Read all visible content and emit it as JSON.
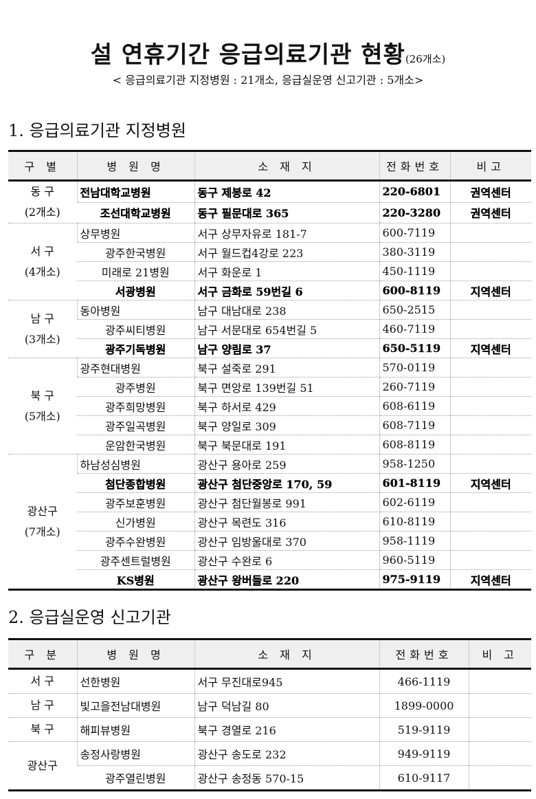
{
  "title": {
    "main": "설 연휴기간 응급의료기관 현황",
    "count": "(26개소)"
  },
  "subtitle": "< 응급의료기관 지정병원 : 21개소,  응급실운영 신고기관 :  5개소>",
  "section1": {
    "heading": "1. 응급의료기관 지정병원",
    "headers": [
      "구 별",
      "병 원 명",
      "소 재 지",
      "전화번호",
      "비고"
    ],
    "groups": [
      {
        "name": "동 구",
        "count": "(2개소)",
        "rows": [
          {
            "name": "전남대학교병원",
            "address": "동구 제봉로 42",
            "phone": "220-6801",
            "note": "권역센터"
          },
          {
            "name": "조선대학교병원",
            "address": "동구 필문대로 365",
            "phone": "220-3280",
            "note": "권역센터"
          }
        ]
      },
      {
        "name": "서 구",
        "count": "(4개소)",
        "rows": [
          {
            "name": "상무병원",
            "address": "서구 상무자유로 181-7",
            "phone": "600-7119",
            "note": ""
          },
          {
            "name": "광주한국병원",
            "address": "서구 월드컵4강로 223",
            "phone": "380-3119",
            "note": ""
          },
          {
            "name": "미래로 21병원",
            "address": "서구 화운로 1",
            "phone": "450-1119",
            "note": ""
          },
          {
            "name": "서광병원",
            "address": "서구 금화로 59번길 6",
            "phone": "600-8119",
            "note": "지역센터"
          }
        ]
      },
      {
        "name": "남 구",
        "count": "(3개소)",
        "rows": [
          {
            "name": "동아병원",
            "address": "남구 대남대로 238",
            "phone": "650-2515",
            "note": ""
          },
          {
            "name": "광주씨티병원",
            "address": "남구 서문대로 654번길 5",
            "phone": "460-7119",
            "note": ""
          },
          {
            "name": "광주기독병원",
            "address": "남구 양림로 37",
            "phone": "650-5119",
            "note": "지역센터"
          }
        ]
      },
      {
        "name": "북 구",
        "count": "(5개소)",
        "rows": [
          {
            "name": "광주현대병원",
            "address": "북구 설죽로 291",
            "phone": "570-0119",
            "note": ""
          },
          {
            "name": "광주병원",
            "address": "북구 면앙로 139번길 51",
            "phone": "260-7119",
            "note": ""
          },
          {
            "name": "광주희망병원",
            "address": "북구 하서로 429",
            "phone": "608-6119",
            "note": ""
          },
          {
            "name": "광주일곡병원",
            "address": "북구 양일로 309",
            "phone": "608-7119",
            "note": ""
          },
          {
            "name": "운암한국병원",
            "address": "북구 북문대로 191",
            "phone": "608-8119",
            "note": ""
          }
        ]
      },
      {
        "name": "광산구",
        "count": "(7개소)",
        "rows": [
          {
            "name": "하남성심병원",
            "address": "광산구 용아로 259",
            "phone": "958-1250",
            "note": ""
          },
          {
            "name": "첨단종합병원",
            "address": "광산구 첨단중앙로 170, 59",
            "phone": "601-8119",
            "note": "지역센터"
          },
          {
            "name": "광주보훈병원",
            "address": "광산구 첨단월봉로 991",
            "phone": "602-6119",
            "note": ""
          },
          {
            "name": "신가병원",
            "address": "광산구 목련도 316",
            "phone": "610-8119",
            "note": ""
          },
          {
            "name": "광주수완병원",
            "address": "광산구 임방울대로 370",
            "phone": "958-1119",
            "note": ""
          },
          {
            "name": "광주센트럴병원",
            "address": "광산구 수완로 6",
            "phone": "960-5119",
            "note": ""
          },
          {
            "name": "KS병원",
            "address": "광산구 왕버들로 220",
            "phone": "975-9119",
            "note": "지역센터"
          }
        ]
      }
    ]
  },
  "section2": {
    "heading": "2. 응급실운영 신고기관",
    "headers": [
      "구 분",
      "병 원 명",
      "소 재 지",
      "전화번호",
      "비 고"
    ],
    "groups": [
      {
        "name": "서 구",
        "rows": [
          {
            "name": "선한병원",
            "address": "서구 무진대로945",
            "phone": "466-1119",
            "note": ""
          }
        ]
      },
      {
        "name": "남 구",
        "rows": [
          {
            "name": "빛고을전남대병원",
            "address": "남구 덕남길 80",
            "phone": "1899-0000",
            "note": ""
          }
        ]
      },
      {
        "name": "북 구",
        "rows": [
          {
            "name": "해피뷰병원",
            "address": "북구 경열로 216",
            "phone": "519-9119",
            "note": ""
          }
        ]
      },
      {
        "name": "광산구",
        "rows": [
          {
            "name": "송정사랑병원",
            "address": "광산구 송도로 232",
            "phone": "949-9119",
            "note": ""
          },
          {
            "name": "광주열린병원",
            "address": "광산구 송정동 570-15",
            "phone": "610-9117",
            "note": ""
          }
        ]
      }
    ]
  }
}
